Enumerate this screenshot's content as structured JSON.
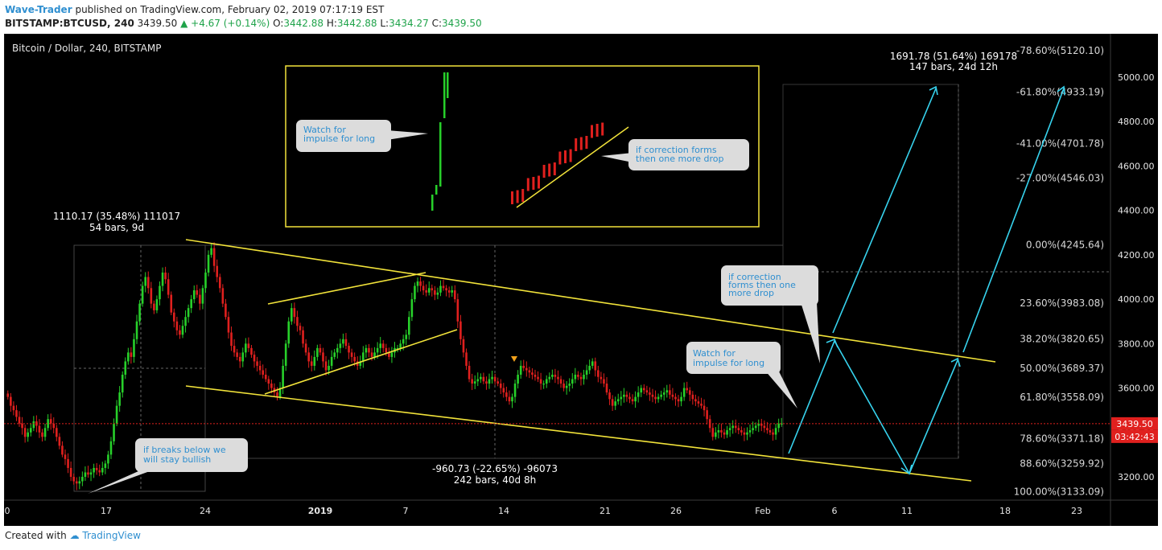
{
  "header": {
    "author": "Wave-Trader",
    "published": "published on TradingView.com, February 02, 2019 07:17:19 EST",
    "symbol": "BITSTAMP:BTCUSD, 240",
    "last": "3439.50",
    "change": "+4.67 (+0.14%)",
    "o_label": "O:",
    "o": "3442.88",
    "h_label": "H:",
    "h": "3442.88",
    "l_label": "L:",
    "l": "3434.27",
    "c_label": "C:",
    "c": "3439.50"
  },
  "footer": {
    "created_with": "Created with",
    "brand": "TradingView"
  },
  "chart_data": {
    "type": "candlestick",
    "title": "Bitcoin / Dollar, 240, BITSTAMP",
    "colors": {
      "up": "#27d02a",
      "down": "#e0201e",
      "line": "#f2e33a",
      "arrow": "#37d3ee",
      "background": "#000000"
    },
    "x_ticks": [
      "0",
      "17",
      "24",
      "2019",
      "7",
      "14",
      "21",
      "26",
      "Feb",
      "6",
      "11",
      "18",
      "23"
    ],
    "y_ticks": [
      "3200.00",
      "3400.00",
      "3600.00",
      "3800.00",
      "4000.00",
      "4200.00",
      "4400.00",
      "4600.00",
      "4800.00",
      "5000.00"
    ],
    "ylim": [
      3080,
      5200
    ],
    "last_price": "3439.50",
    "countdown": "03:42:43",
    "fib_levels": [
      {
        "label": "-78.60%(5120.10)",
        "value": 5120.1
      },
      {
        "label": "-61.80%(4933.19)",
        "value": 4933.19
      },
      {
        "label": "-41.00%(4701.78)",
        "value": 4701.78
      },
      {
        "label": "-27.00%(4546.03)",
        "value": 4546.03
      },
      {
        "label": "0.00%(4245.64)",
        "value": 4245.64
      },
      {
        "label": "23.60%(3983.08)",
        "value": 3983.08
      },
      {
        "label": "38.20%(3820.65)",
        "value": 3820.65
      },
      {
        "label": "50.00%(3689.37)",
        "value": 3689.37
      },
      {
        "label": "61.80%(3558.09)",
        "value": 3558.09
      },
      {
        "label": "78.60%(3371.18)",
        "value": 3371.18
      },
      {
        "label": "88.60%(3259.92)",
        "value": 3259.92
      },
      {
        "label": "100.00%(3133.09)",
        "value": 3133.09
      }
    ],
    "measurements": [
      {
        "line1": "1110.17 (35.48%) 111017",
        "line2": "54 bars, 9d"
      },
      {
        "line1": "-960.73 (-22.65%) -96073",
        "line2": "242 bars, 40d 8h"
      },
      {
        "line1": "1691.78 (51.64%) 169178",
        "line2": "147 bars, 24d 12h"
      }
    ],
    "annotations": [
      {
        "line1": "Watch for",
        "line2": "impulse for long"
      },
      {
        "line1": "if correction forms",
        "line2": "then one more drop"
      },
      {
        "line1": "if correction",
        "line2": "forms then one",
        "line3": "more drop"
      },
      {
        "line1": "Watch for",
        "line2": "impulse for long"
      },
      {
        "line1": "if breaks below we",
        "line2": "will stay bullish"
      }
    ],
    "series": [
      {
        "name": "BTCUSD",
        "close": [
          3560,
          3520,
          3500,
          3470,
          3440,
          3420,
          3380,
          3400,
          3420,
          3450,
          3430,
          3400,
          3380,
          3420,
          3460,
          3440,
          3420,
          3380,
          3340,
          3300,
          3280,
          3240,
          3200,
          3180,
          3170,
          3180,
          3200,
          3220,
          3210,
          3220,
          3240,
          3230,
          3220,
          3240,
          3260,
          3300,
          3360,
          3440,
          3520,
          3580,
          3660,
          3720,
          3760,
          3740,
          3820,
          3900,
          3980,
          4060,
          4100,
          4050,
          3980,
          3950,
          4000,
          4060,
          4120,
          4090,
          4020,
          3940,
          3900,
          3860,
          3840,
          3880,
          3920,
          3960,
          4000,
          4040,
          4020,
          3980,
          4050,
          4120,
          4200,
          4230,
          4150,
          4100,
          4050,
          3980,
          3920,
          3850,
          3790,
          3760,
          3740,
          3720,
          3760,
          3800,
          3780,
          3750,
          3720,
          3700,
          3680,
          3660,
          3640,
          3620,
          3600,
          3580,
          3560,
          3600,
          3700,
          3800,
          3900,
          3960,
          3920,
          3880,
          3860,
          3800,
          3760,
          3720,
          3700,
          3740,
          3780,
          3760,
          3720,
          3680,
          3700,
          3740,
          3760,
          3780,
          3800,
          3820,
          3790,
          3760,
          3740,
          3720,
          3700,
          3720,
          3760,
          3780,
          3760,
          3740,
          3760,
          3780,
          3800,
          3780,
          3760,
          3740,
          3760,
          3780,
          3780,
          3800,
          3820,
          3840,
          3920,
          4000,
          4060,
          4080,
          4060,
          4040,
          4030,
          4050,
          4040,
          4020,
          4030,
          4060,
          4050,
          4040,
          4030,
          4040,
          4000,
          3900,
          3820,
          3760,
          3700,
          3640,
          3620,
          3630,
          3640,
          3650,
          3630,
          3620,
          3640,
          3650,
          3630,
          3620,
          3600,
          3580,
          3560,
          3540,
          3560,
          3620,
          3660,
          3700,
          3690,
          3680,
          3670,
          3660,
          3650,
          3640,
          3620,
          3620,
          3640,
          3650,
          3660,
          3650,
          3640,
          3620,
          3600,
          3610,
          3620,
          3640,
          3660,
          3650,
          3640,
          3660,
          3680,
          3700,
          3720,
          3680,
          3650,
          3640,
          3620,
          3580,
          3550,
          3520,
          3540,
          3550,
          3560,
          3570,
          3560,
          3550,
          3540,
          3560,
          3580,
          3600,
          3590,
          3580,
          3570,
          3560,
          3550,
          3560,
          3570,
          3580,
          3590,
          3570,
          3560,
          3550,
          3540,
          3560,
          3600,
          3590,
          3570,
          3550,
          3540,
          3530,
          3520,
          3500,
          3460,
          3420,
          3380,
          3400,
          3410,
          3400,
          3390,
          3410,
          3420,
          3430,
          3420,
          3410,
          3400,
          3390,
          3400,
          3410,
          3420,
          3430,
          3440,
          3430,
          3420,
          3410,
          3400,
          3390,
          3420,
          3440,
          3440
        ]
      }
    ],
    "inset": {
      "label_left": "Watch for impulse for long",
      "label_right": "if correction forms then one more drop"
    }
  }
}
